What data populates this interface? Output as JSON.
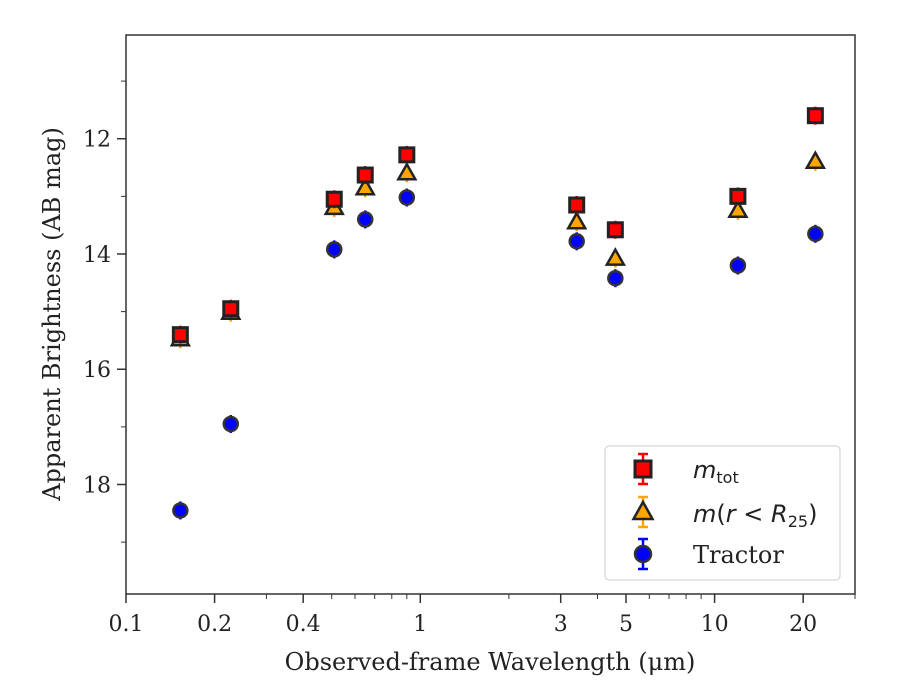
{
  "chart_data": {
    "type": "scatter",
    "xlabel": "Observed-frame Wavelength (μm)",
    "ylabel": "Apparent Brightness (AB mag)",
    "x_scale": "log",
    "y_inverted": true,
    "xlim": [
      0.1,
      30
    ],
    "ylim": [
      19.9,
      10.2
    ],
    "x_ticks": [
      {
        "value": 0.1,
        "label": "0.1"
      },
      {
        "value": 0.2,
        "label": "0.2"
      },
      {
        "value": 0.4,
        "label": "0.4"
      },
      {
        "value": 1,
        "label": "1"
      },
      {
        "value": 3,
        "label": "3"
      },
      {
        "value": 5,
        "label": "5"
      },
      {
        "value": 10,
        "label": "10"
      },
      {
        "value": 20,
        "label": "20"
      }
    ],
    "y_ticks": [
      {
        "value": 12,
        "label": "12"
      },
      {
        "value": 14,
        "label": "14"
      },
      {
        "value": 16,
        "label": "16"
      },
      {
        "value": 18,
        "label": "18"
      }
    ],
    "grid": false,
    "legend_position": "bottom-right",
    "series": [
      {
        "legend_label": "m_tot",
        "marker": "square",
        "color": "#ff0000",
        "edge_color": "#222222",
        "x": [
          0.153,
          0.227,
          0.51,
          0.65,
          0.9,
          3.4,
          4.6,
          12.0,
          22.0
        ],
        "y": [
          15.4,
          14.95,
          13.05,
          12.63,
          12.28,
          13.15,
          13.58,
          13.0,
          11.6
        ]
      },
      {
        "legend_label": "m(r < R25)",
        "marker": "triangle",
        "color": "#ffa500",
        "edge_color": "#222222",
        "x": [
          0.153,
          0.227,
          0.51,
          0.65,
          0.9,
          3.4,
          4.6,
          12.0,
          22.0
        ],
        "y": [
          15.48,
          15.02,
          13.2,
          12.86,
          12.6,
          13.45,
          14.08,
          13.25,
          12.4
        ]
      },
      {
        "legend_label": "Tractor",
        "marker": "circle",
        "color": "#0000ff",
        "edge_color": "#333333",
        "x": [
          0.153,
          0.227,
          0.51,
          0.65,
          0.9,
          3.4,
          4.6,
          12.0,
          22.0
        ],
        "y": [
          18.45,
          16.95,
          13.92,
          13.4,
          13.02,
          13.78,
          14.42,
          14.2,
          13.65
        ]
      }
    ]
  }
}
